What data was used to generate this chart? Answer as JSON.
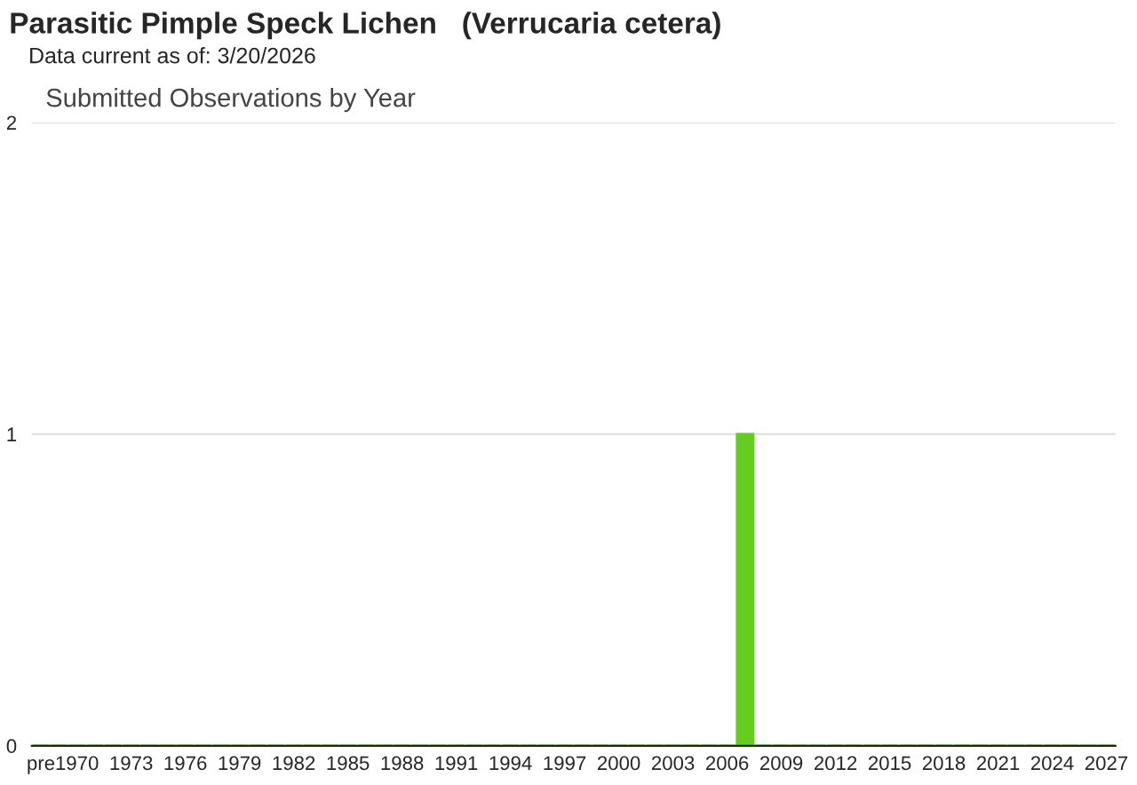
{
  "chart_data": {
    "type": "bar",
    "title": "Parasitic Pimple Speck Lichen   (Verrucaria cetera)",
    "subtitle": "Data current as of: 3/20/2026",
    "annotations": [
      "Submitted Observations by Year"
    ],
    "categories": [
      "pre",
      null,
      "1970",
      null,
      null,
      "1973",
      null,
      null,
      "1976",
      null,
      null,
      "1979",
      null,
      null,
      "1982",
      null,
      null,
      "1985",
      null,
      null,
      "1988",
      null,
      null,
      "1991",
      null,
      null,
      "1994",
      null,
      null,
      "1997",
      null,
      null,
      "2000",
      null,
      null,
      "2003",
      null,
      null,
      "2006",
      null,
      null,
      "2009",
      null,
      null,
      "2012",
      null,
      null,
      "2015",
      null,
      null,
      "2018",
      null,
      null,
      "2021",
      null,
      null,
      "2024",
      null,
      null,
      "2027"
    ],
    "values": [
      0,
      0,
      0,
      0,
      0,
      0,
      0,
      0,
      0,
      0,
      0,
      0,
      0,
      0,
      0,
      0,
      0,
      0,
      0,
      0,
      0,
      0,
      0,
      0,
      0,
      0,
      0,
      0,
      0,
      0,
      0,
      0,
      0,
      0,
      0,
      0,
      0,
      0,
      0,
      1,
      0,
      0,
      0,
      0,
      0,
      0,
      0,
      0,
      0,
      0,
      0,
      0,
      0,
      0,
      0,
      0,
      0,
      0,
      0,
      0
    ],
    "color": "#66cc22",
    "ylim": [
      0,
      2
    ],
    "yticks": [
      0,
      1,
      2
    ],
    "grid": "y",
    "legend": false
  }
}
